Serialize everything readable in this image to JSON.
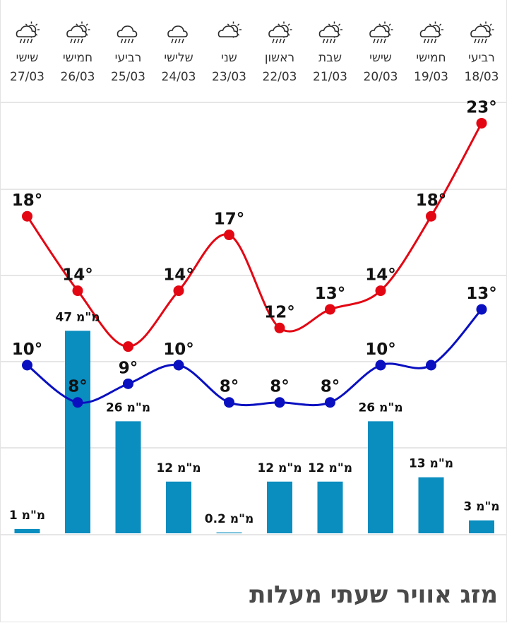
{
  "title": "מזג אוויר שעתי מעלות",
  "chart_data": {
    "type": "bar+line",
    "unit_temp": "°",
    "unit_rain": "מ\"מ",
    "days": [
      {
        "day": "רביעי",
        "date": "18/03",
        "icon": "rain-sun-icon"
      },
      {
        "day": "חמישי",
        "date": "19/03",
        "icon": "rain-sun-icon"
      },
      {
        "day": "שישי",
        "date": "20/03",
        "icon": "rain-sun-icon"
      },
      {
        "day": "שבת",
        "date": "21/03",
        "icon": "rain-sun-icon"
      },
      {
        "day": "ראשון",
        "date": "22/03",
        "icon": "rain-sun-icon"
      },
      {
        "day": "שני",
        "date": "23/03",
        "icon": "partly-cloudy-icon"
      },
      {
        "day": "שלישי",
        "date": "24/03",
        "icon": "rain-cloud-icon"
      },
      {
        "day": "רביעי",
        "date": "25/03",
        "icon": "rain-cloud-icon"
      },
      {
        "day": "חמישי",
        "date": "26/03",
        "icon": "rain-sun-icon"
      },
      {
        "day": "שישי",
        "date": "27/03",
        "icon": "rain-sun-icon"
      }
    ],
    "series": [
      {
        "name": "max",
        "color": "#e30613",
        "values": [
          23,
          18,
          14,
          13,
          12,
          17,
          14,
          11,
          14,
          18
        ]
      },
      {
        "name": "min",
        "color": "#0a10c0",
        "values": [
          13,
          10,
          10,
          8,
          8,
          8,
          10,
          9,
          8,
          10
        ]
      }
    ],
    "labels_max": [
      "23°",
      "18°",
      "14°",
      "13°",
      "12°",
      "17°",
      "14°",
      "",
      "14°",
      "18°"
    ],
    "labels_min": [
      "13°",
      "",
      "10°",
      "8°",
      "8°",
      "8°",
      "10°",
      "9°",
      "8°",
      "10°"
    ],
    "rain": {
      "color": "#0a8dbf",
      "values": [
        3,
        13,
        26,
        12,
        12,
        0.2,
        12,
        26,
        47,
        1
      ],
      "labels": [
        "3 מ\"מ",
        "13 מ\"מ",
        "26 מ\"מ",
        "12 מ\"מ",
        "12 מ\"מ",
        "0.2 מ\"מ",
        "12 מ\"מ",
        "26 מ\"מ",
        "47 מ\"מ",
        "1 מ\"מ"
      ]
    },
    "grid": true
  }
}
